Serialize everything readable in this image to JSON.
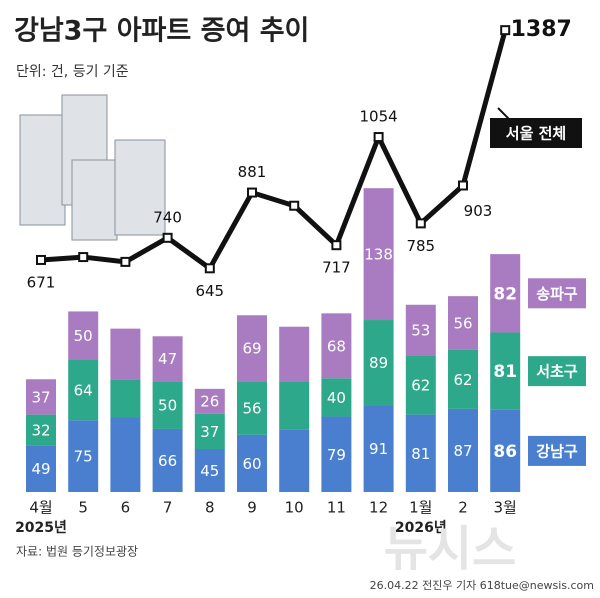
{
  "chart_data": {
    "type": "stacked-bar-line",
    "title": "강남3구 아파트 증여 추이",
    "subtitle": "단위: 건, 등기 기준",
    "categories": [
      "4월",
      "5",
      "6",
      "7",
      "8",
      "9",
      "10",
      "11",
      "12",
      "1월",
      "2",
      "3월"
    ],
    "year_labels": [
      {
        "index": 0,
        "label": "2025년"
      },
      {
        "index": 9,
        "label": "2026년"
      }
    ],
    "ylim": [
      0,
      515
    ],
    "y2lim": [
      -52,
      1481
    ],
    "series": [
      {
        "name": "강남구",
        "color": "#4a7fcf",
        "values": [
          49,
          75,
          78,
          66,
          45,
          60,
          65,
          79,
          91,
          81,
          87,
          86
        ],
        "value_labels": [
          "49",
          "75",
          null,
          "66",
          "45",
          "60",
          null,
          "79",
          "91",
          "81",
          "87",
          "86"
        ]
      },
      {
        "name": "서초구",
        "color": "#2ea88a",
        "values": [
          32,
          64,
          40,
          50,
          37,
          56,
          51,
          40,
          89,
          62,
          62,
          81
        ],
        "value_labels": [
          "32",
          "64",
          null,
          "50",
          "37",
          "56",
          null,
          "40",
          "89",
          "62",
          "62",
          "81"
        ]
      },
      {
        "name": "송파구",
        "color": "#a97bc0",
        "values": [
          37,
          50,
          53,
          47,
          26,
          69,
          57,
          68,
          138,
          53,
          56,
          82
        ],
        "value_labels": [
          "37",
          "50",
          null,
          "47",
          "26",
          "69",
          null,
          "68",
          "138",
          "53",
          "56",
          "82"
        ]
      },
      {
        "name": "서울 전체",
        "color": "#111111",
        "axis": "y2",
        "values": [
          671,
          680,
          665,
          740,
          645,
          881,
          840,
          717,
          1054,
          785,
          903,
          1387
        ],
        "value_labels": [
          "671",
          null,
          null,
          "740",
          "645",
          "881",
          null,
          "717",
          "1054",
          "785",
          "903",
          "1387"
        ]
      }
    ],
    "source": "자료: 법원 등기정보광장",
    "credit": "26.04.22 전진우 기자 618tue@newsis.com",
    "watermark": "뉴시스"
  }
}
